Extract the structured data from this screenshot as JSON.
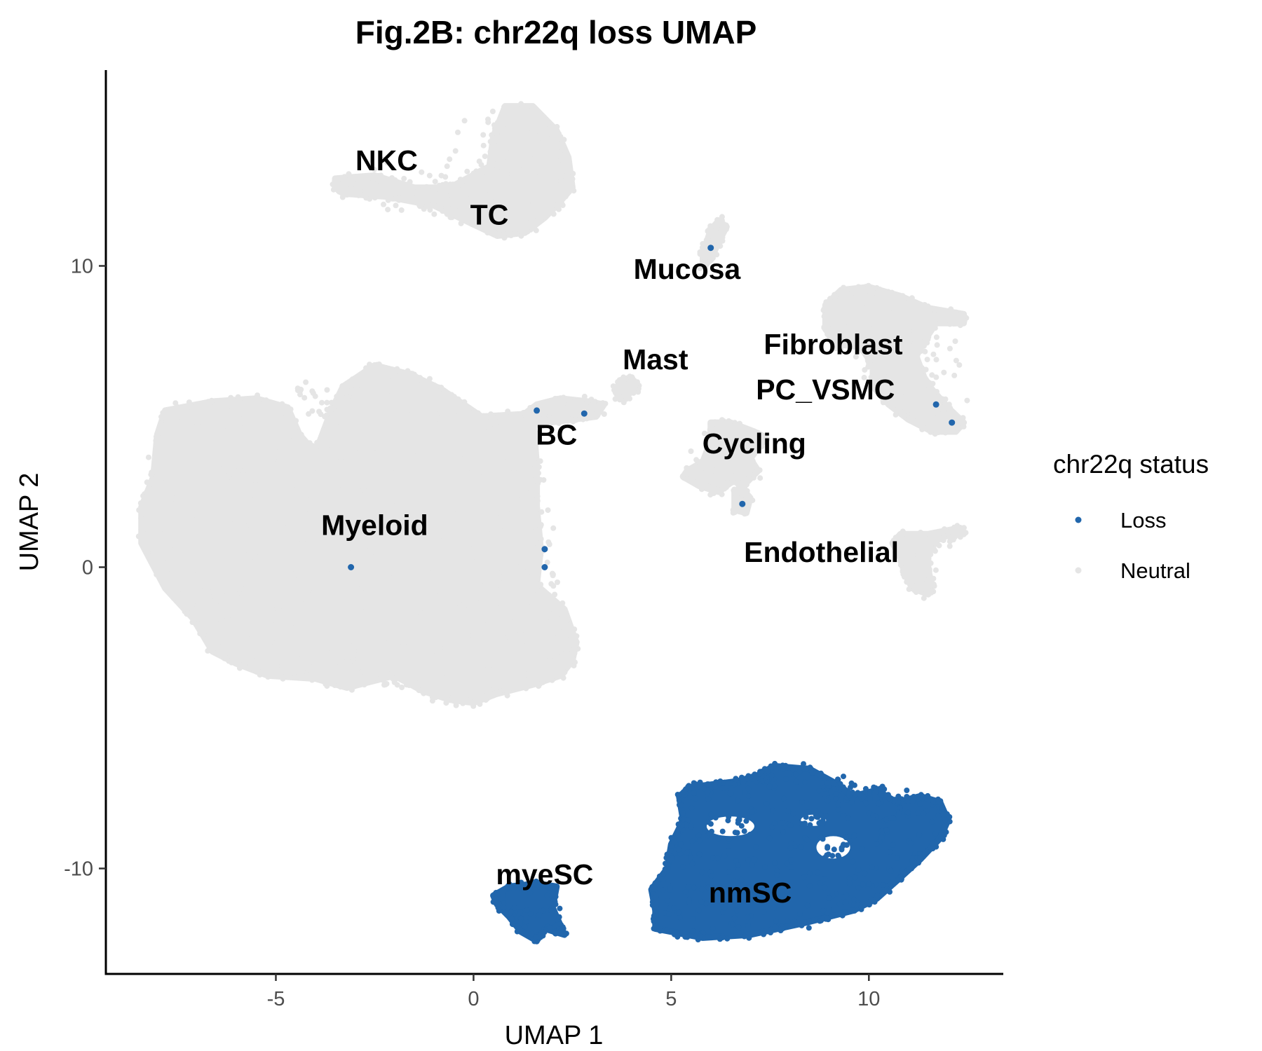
{
  "chart_data": {
    "type": "scatter",
    "title": "Fig.2B: chr22q loss UMAP",
    "xlabel": "UMAP 1",
    "ylabel": "UMAP 2",
    "xlim": [
      -9.3,
      13.4
    ],
    "ylim": [
      -13.5,
      16.5
    ],
    "x_ticks": [
      -5,
      0,
      5,
      10
    ],
    "x_tick_labels": [
      "-5",
      "0",
      "5",
      "10"
    ],
    "y_ticks": [
      -10,
      0,
      10
    ],
    "y_tick_labels": [
      "-10",
      "0",
      "10"
    ],
    "grid": false,
    "legend": {
      "title": "chr22q status",
      "placement": "right",
      "entries": [
        {
          "label": "Loss",
          "color": "#2166ac"
        },
        {
          "label": "Neutral",
          "color": "#e5e5e5"
        }
      ]
    },
    "cluster_labels": [
      {
        "text": "NKC",
        "x": -2.2,
        "y": 13.5
      },
      {
        "text": "TC",
        "x": 0.4,
        "y": 11.7
      },
      {
        "text": "Mucosa",
        "x": 5.4,
        "y": 9.9
      },
      {
        "text": "Mast",
        "x": 4.6,
        "y": 6.9
      },
      {
        "text": "Fibroblast",
        "x": 9.1,
        "y": 7.4
      },
      {
        "text": "PC_VSMC",
        "x": 8.9,
        "y": 5.9
      },
      {
        "text": "BC",
        "x": 2.1,
        "y": 4.4
      },
      {
        "text": "Cycling",
        "x": 7.1,
        "y": 4.1
      },
      {
        "text": "Myeloid",
        "x": -2.5,
        "y": 1.4
      },
      {
        "text": "Endothelial",
        "x": 8.8,
        "y": 0.5
      },
      {
        "text": "myeSC",
        "x": 1.8,
        "y": -10.2
      },
      {
        "text": "nmSC",
        "x": 7.0,
        "y": -10.8
      }
    ],
    "series": [
      {
        "name": "Neutral",
        "color": "#e5e5e5",
        "regions": [
          {
            "cluster": "Myeloid",
            "outline": [
              [
                -7.8,
                5.2
              ],
              [
                -6.6,
                5.5
              ],
              [
                -5.5,
                5.6
              ],
              [
                -4.7,
                5.3
              ],
              [
                -4.4,
                4.4
              ],
              [
                -4.0,
                3.8
              ],
              [
                -3.6,
                5.2
              ],
              [
                -3.3,
                6.0
              ],
              [
                -2.5,
                6.7
              ],
              [
                -1.6,
                6.4
              ],
              [
                -0.8,
                5.9
              ],
              [
                0.2,
                5.0
              ],
              [
                1.5,
                5.1
              ],
              [
                1.6,
                3.4
              ],
              [
                1.6,
                2.0
              ],
              [
                1.7,
                0.6
              ],
              [
                1.6,
                -0.6
              ],
              [
                2.3,
                -1.4
              ],
              [
                2.6,
                -2.5
              ],
              [
                2.5,
                -3.1
              ],
              [
                2.2,
                -3.6
              ],
              [
                1.5,
                -3.9
              ],
              [
                0.6,
                -4.2
              ],
              [
                0.0,
                -4.5
              ],
              [
                -0.6,
                -4.4
              ],
              [
                -1.3,
                -4.1
              ],
              [
                -2.0,
                -3.6
              ],
              [
                -2.6,
                -3.8
              ],
              [
                -3.2,
                -4.0
              ],
              [
                -4.0,
                -3.7
              ],
              [
                -5.2,
                -3.6
              ],
              [
                -6.0,
                -3.2
              ],
              [
                -6.6,
                -2.8
              ],
              [
                -7.1,
                -1.7
              ],
              [
                -7.8,
                -0.7
              ],
              [
                -8.4,
                0.8
              ],
              [
                -8.4,
                2.0
              ],
              [
                -8.1,
                3.0
              ],
              [
                -8.0,
                4.4
              ]
            ]
          },
          {
            "cluster": "NKC_TC",
            "outline": [
              [
                -3.5,
                12.9
              ],
              [
                -2.5,
                13.0
              ],
              [
                -1.5,
                12.6
              ],
              [
                -0.6,
                12.6
              ],
              [
                0.4,
                13.3
              ],
              [
                0.5,
                14.3
              ],
              [
                0.8,
                15.3
              ],
              [
                1.5,
                15.3
              ],
              [
                2.1,
                14.5
              ],
              [
                2.4,
                13.6
              ],
              [
                2.5,
                12.6
              ],
              [
                2.1,
                12.0
              ],
              [
                1.8,
                11.6
              ],
              [
                1.3,
                11.1
              ],
              [
                0.6,
                11.0
              ],
              [
                -0.2,
                11.5
              ],
              [
                -1.0,
                12.0
              ],
              [
                -2.2,
                12.3
              ],
              [
                -3.3,
                12.4
              ],
              [
                -3.5,
                12.6
              ]
            ]
          },
          {
            "cluster": "Mucosa",
            "outline": [
              [
                5.8,
                10.4
              ],
              [
                6.0,
                11.2
              ],
              [
                6.2,
                11.5
              ],
              [
                6.4,
                11.3
              ],
              [
                6.2,
                10.8
              ],
              [
                6.0,
                10.2
              ],
              [
                5.8,
                10.0
              ]
            ]
          },
          {
            "cluster": "Mast",
            "outline": [
              [
                3.6,
                5.8
              ],
              [
                3.7,
                6.2
              ],
              [
                4.0,
                6.3
              ],
              [
                4.1,
                6.0
              ],
              [
                3.9,
                5.7
              ],
              [
                3.7,
                5.6
              ]
            ]
          },
          {
            "cluster": "BC",
            "outline": [
              [
                1.3,
                5.1
              ],
              [
                1.6,
                5.4
              ],
              [
                2.2,
                5.6
              ],
              [
                2.9,
                5.5
              ],
              [
                3.3,
                5.4
              ],
              [
                3.1,
                5.0
              ],
              [
                2.5,
                4.9
              ],
              [
                1.9,
                4.8
              ],
              [
                1.4,
                4.8
              ]
            ]
          },
          {
            "cluster": "Fibroblast_PC_VSMC",
            "outline": [
              [
                8.9,
                8.7
              ],
              [
                9.3,
                9.2
              ],
              [
                10.0,
                9.3
              ],
              [
                10.8,
                9.0
              ],
              [
                11.5,
                8.6
              ],
              [
                12.4,
                8.4
              ],
              [
                12.4,
                8.1
              ],
              [
                11.7,
                8.1
              ],
              [
                11.4,
                7.5
              ],
              [
                11.2,
                7.0
              ],
              [
                11.4,
                6.3
              ],
              [
                11.6,
                5.9
              ],
              [
                12.0,
                5.3
              ],
              [
                12.4,
                4.8
              ],
              [
                12.2,
                4.5
              ],
              [
                11.6,
                4.5
              ],
              [
                11.0,
                4.9
              ],
              [
                10.5,
                5.4
              ],
              [
                10.1,
                6.0
              ],
              [
                10.1,
                6.7
              ],
              [
                9.8,
                7.3
              ],
              [
                9.2,
                7.4
              ],
              [
                8.9,
                7.9
              ]
            ]
          },
          {
            "cluster": "Cycling",
            "outline": [
              [
                5.4,
                3.2
              ],
              [
                5.8,
                3.5
              ],
              [
                6.0,
                4.2
              ],
              [
                6.0,
                4.8
              ],
              [
                6.5,
                4.8
              ],
              [
                7.1,
                4.5
              ],
              [
                7.4,
                4.3
              ],
              [
                7.0,
                3.6
              ],
              [
                7.2,
                3.2
              ],
              [
                6.9,
                2.8
              ],
              [
                6.6,
                2.5
              ],
              [
                6.6,
                1.9
              ],
              [
                6.9,
                1.8
              ],
              [
                7.0,
                2.3
              ],
              [
                6.6,
                2.9
              ],
              [
                6.2,
                2.5
              ],
              [
                5.7,
                2.7
              ],
              [
                5.3,
                3.0
              ]
            ]
          },
          {
            "cluster": "Endothelial",
            "outline": [
              [
                10.6,
                0.8
              ],
              [
                10.8,
                1.1
              ],
              [
                11.5,
                1.1
              ],
              [
                12.3,
                1.3
              ],
              [
                12.4,
                1.1
              ],
              [
                11.8,
                1.0
              ],
              [
                11.5,
                0.5
              ],
              [
                11.5,
                -0.1
              ],
              [
                11.6,
                -0.6
              ],
              [
                11.5,
                -0.9
              ],
              [
                11.1,
                -0.7
              ],
              [
                10.9,
                -0.2
              ],
              [
                10.8,
                0.3
              ]
            ]
          }
        ]
      },
      {
        "name": "Loss",
        "color": "#2166ac",
        "regions": [
          {
            "cluster": "nmSC",
            "outline": [
              [
                4.6,
                -12.0
              ],
              [
                5.8,
                -12.3
              ],
              [
                7.0,
                -12.2
              ],
              [
                8.4,
                -11.8
              ],
              [
                9.6,
                -11.4
              ],
              [
                10.2,
                -11.0
              ],
              [
                10.8,
                -10.3
              ],
              [
                11.3,
                -9.7
              ],
              [
                11.8,
                -9.0
              ],
              [
                12.0,
                -8.4
              ],
              [
                11.8,
                -7.8
              ],
              [
                11.3,
                -7.6
              ],
              [
                10.7,
                -7.8
              ],
              [
                10.2,
                -7.4
              ],
              [
                9.6,
                -7.6
              ],
              [
                9.2,
                -7.2
              ],
              [
                8.5,
                -6.7
              ],
              [
                7.6,
                -6.6
              ],
              [
                7.2,
                -6.9
              ],
              [
                6.7,
                -7.1
              ],
              [
                6.1,
                -7.2
              ],
              [
                5.5,
                -7.3
              ],
              [
                5.2,
                -7.6
              ],
              [
                5.3,
                -8.4
              ],
              [
                5.0,
                -9.2
              ],
              [
                4.9,
                -10.0
              ],
              [
                4.5,
                -10.7
              ],
              [
                4.6,
                -11.4
              ]
            ]
          },
          {
            "cluster": "myeSC",
            "outline": [
              [
                0.5,
                -10.9
              ],
              [
                0.9,
                -10.6
              ],
              [
                1.6,
                -10.5
              ],
              [
                2.1,
                -10.6
              ],
              [
                2.0,
                -11.3
              ],
              [
                2.2,
                -11.9
              ],
              [
                2.3,
                -12.2
              ],
              [
                1.8,
                -12.0
              ],
              [
                1.6,
                -12.4
              ],
              [
                1.2,
                -12.1
              ],
              [
                0.9,
                -11.6
              ],
              [
                0.6,
                -11.2
              ]
            ]
          },
          {
            "cluster": "scattered",
            "points": [
              [
                6.0,
                10.6
              ],
              [
                1.6,
                5.2
              ],
              [
                2.8,
                5.1
              ],
              [
                11.7,
                5.4
              ],
              [
                12.1,
                4.8
              ],
              [
                6.8,
                2.1
              ],
              [
                1.8,
                0.6
              ],
              [
                1.8,
                0.0
              ],
              [
                -3.1,
                0.0
              ],
              [
                5.5,
                -8.6
              ],
              [
                6.5,
                -7.5
              ],
              [
                7.1,
                -9.7
              ]
            ]
          }
        ]
      }
    ]
  }
}
